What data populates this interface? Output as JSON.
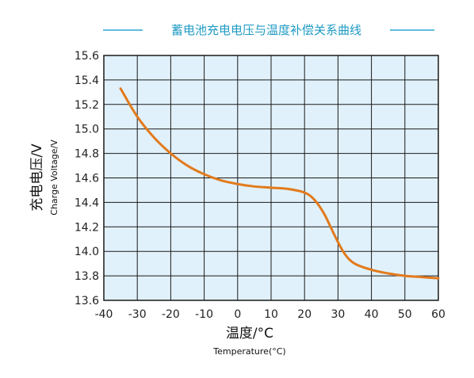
{
  "chart_data": {
    "type": "line",
    "title": "蓄电池充电电压与温度补偿关系曲线",
    "xlabel": "温度/°C",
    "xlabel_sub": "Temperature(°C)",
    "ylabel": "充电电压/V",
    "ylabel_sub": "Charge Voltage/V",
    "xlim": [
      -40,
      60
    ],
    "ylim": [
      13.6,
      15.6
    ],
    "xticks": [
      -40,
      -30,
      -20,
      -10,
      0,
      10,
      20,
      30,
      40,
      50,
      60
    ],
    "yticks": [
      "13.6",
      "13.8",
      "14.0",
      "14.2",
      "14.4",
      "14.6",
      "14.8",
      "15.0",
      "15.2",
      "15.4",
      "15.6"
    ],
    "grid": true,
    "series": [
      {
        "x": [
          -35,
          -30,
          -25,
          -20,
          -15,
          -10,
          -5,
          0,
          5,
          10,
          15,
          20,
          23,
          26,
          29,
          32,
          35,
          40,
          45,
          50,
          55,
          60
        ],
        "y": [
          15.33,
          15.1,
          14.93,
          14.8,
          14.7,
          14.63,
          14.58,
          14.55,
          14.53,
          14.52,
          14.51,
          14.48,
          14.42,
          14.3,
          14.13,
          13.98,
          13.9,
          13.85,
          13.82,
          13.8,
          13.79,
          13.78
        ]
      }
    ],
    "colors": {
      "plot_background": "#e1f1fb",
      "grid": "#1a1a1a",
      "line": "#e27a1c",
      "title": "#1f9bc4",
      "title_rule": "#2aa6cf"
    }
  }
}
